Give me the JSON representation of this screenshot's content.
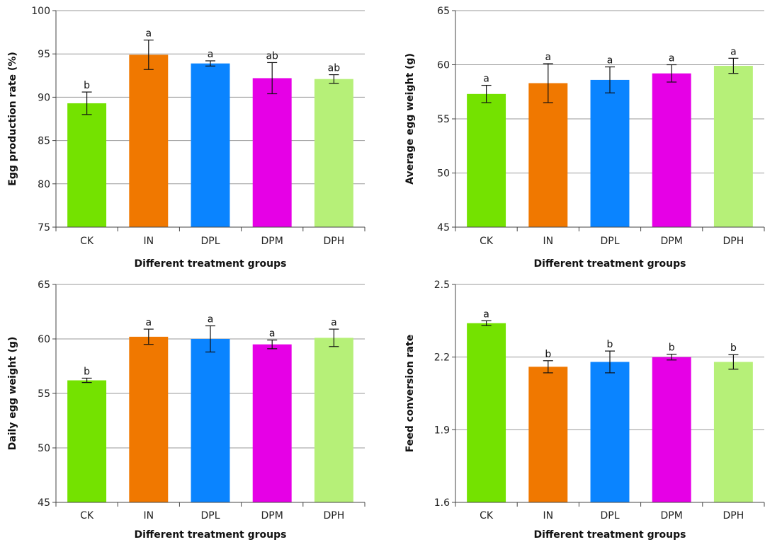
{
  "chart_data": [
    {
      "type": "bar",
      "panel": "top-left",
      "title": "",
      "xlabel": "Different treatment groups",
      "ylabel": "Egg production rate (%)",
      "categories": [
        "CK",
        "IN",
        "DPL",
        "DPM",
        "DPH"
      ],
      "values": [
        89.3,
        94.9,
        93.9,
        92.2,
        92.1
      ],
      "errors": [
        1.3,
        1.7,
        0.3,
        1.8,
        0.5
      ],
      "significance": [
        "b",
        "a",
        "a",
        "ab",
        "ab"
      ],
      "colors": [
        "#74e200",
        "#f07800",
        "#0a84ff",
        "#e600e6",
        "#b6f078"
      ],
      "ylim": [
        75,
        100
      ],
      "yticks": [
        75,
        80,
        85,
        90,
        95,
        100
      ],
      "ytick_labels": [
        "75",
        "80",
        "85",
        "90",
        "95",
        "100"
      ],
      "grid": true
    },
    {
      "type": "bar",
      "panel": "top-right",
      "title": "",
      "xlabel": "Different treatment groups",
      "ylabel": "Average egg weight (g)",
      "categories": [
        "CK",
        "IN",
        "DPL",
        "DPM",
        "DPH"
      ],
      "values": [
        57.3,
        58.3,
        58.6,
        59.2,
        59.9
      ],
      "errors": [
        0.8,
        1.8,
        1.2,
        0.8,
        0.7
      ],
      "significance": [
        "a",
        "a",
        "a",
        "a",
        "a"
      ],
      "colors": [
        "#74e200",
        "#f07800",
        "#0a84ff",
        "#e600e6",
        "#b6f078"
      ],
      "ylim": [
        45,
        65
      ],
      "yticks": [
        45,
        50,
        55,
        60,
        65
      ],
      "ytick_labels": [
        "45",
        "50",
        "55",
        "60",
        "65"
      ],
      "grid": true
    },
    {
      "type": "bar",
      "panel": "bottom-left",
      "title": "",
      "xlabel": "Different treatment groups",
      "ylabel": "Daily egg weight (g)",
      "categories": [
        "CK",
        "IN",
        "DPL",
        "DPM",
        "DPH"
      ],
      "values": [
        56.2,
        60.2,
        60.0,
        59.5,
        60.1
      ],
      "errors": [
        0.2,
        0.7,
        1.2,
        0.4,
        0.8
      ],
      "significance": [
        "b",
        "a",
        "a",
        "a",
        "a"
      ],
      "colors": [
        "#74e200",
        "#f07800",
        "#0a84ff",
        "#e600e6",
        "#b6f078"
      ],
      "ylim": [
        45,
        65
      ],
      "yticks": [
        45,
        50,
        55,
        60,
        65
      ],
      "ytick_labels": [
        "45",
        "50",
        "55",
        "60",
        "65"
      ],
      "grid": true
    },
    {
      "type": "bar",
      "panel": "bottom-right",
      "title": "",
      "xlabel": "Different treatment groups",
      "ylabel": "Feed conversion rate",
      "categories": [
        "CK",
        "IN",
        "DPL",
        "DPM",
        "DPH"
      ],
      "values": [
        2.34,
        2.16,
        2.18,
        2.2,
        2.18
      ],
      "errors": [
        0.01,
        0.025,
        0.045,
        0.012,
        0.03
      ],
      "significance": [
        "a",
        "b",
        "b",
        "b",
        "b"
      ],
      "colors": [
        "#74e200",
        "#f07800",
        "#0a84ff",
        "#e600e6",
        "#b6f078"
      ],
      "ylim": [
        1.6,
        2.5
      ],
      "yticks": [
        1.6,
        1.9,
        2.2,
        2.5
      ],
      "ytick_labels": [
        "1.6",
        "1.9",
        "2.2",
        "2.5"
      ],
      "grid": true
    }
  ]
}
